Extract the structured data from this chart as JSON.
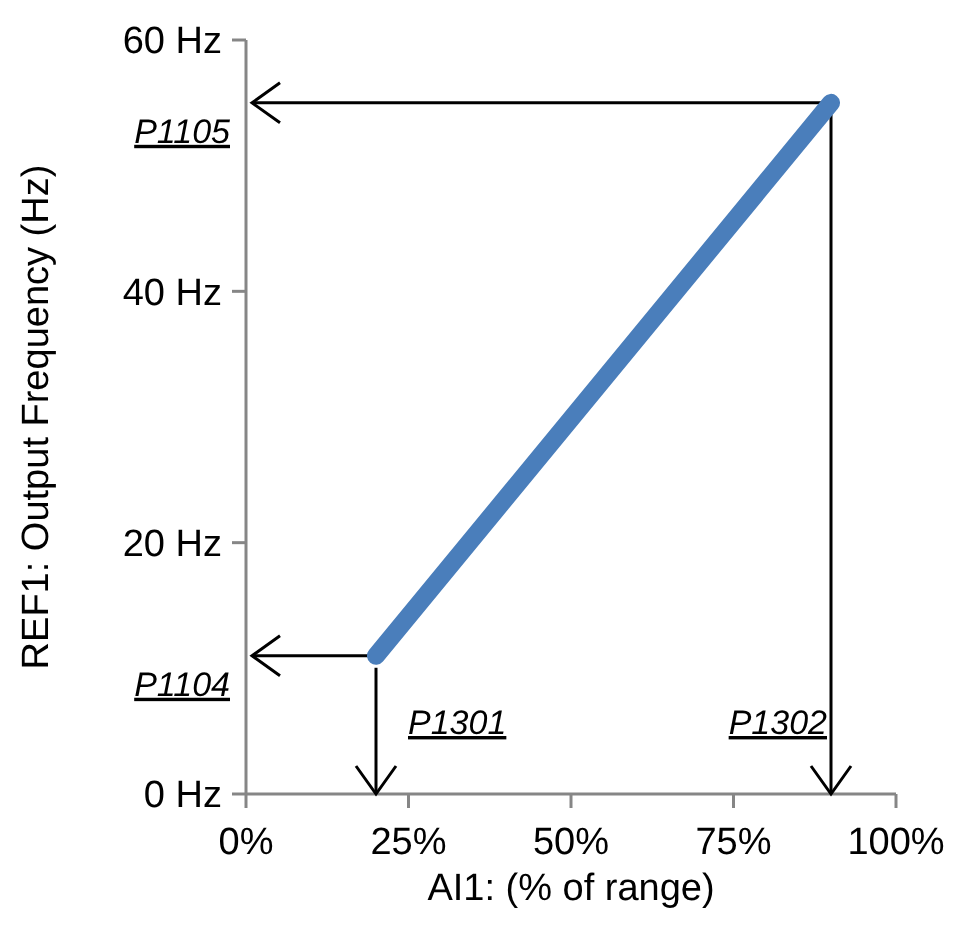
{
  "chart_data": {
    "type": "line",
    "xlabel": "AI1: (% of range)",
    "ylabel": "REF1: Output Frequency (Hz)",
    "x": [
      20,
      90
    ],
    "series": [
      {
        "color": "#4a7ebb",
        "values": [
          11,
          55
        ]
      }
    ],
    "xlim": [
      0,
      100
    ],
    "xticks": [
      {
        "value": 0,
        "label": "0%"
      },
      {
        "value": 25,
        "label": "25%"
      },
      {
        "value": 50,
        "label": "50%"
      },
      {
        "value": 75,
        "label": "75%"
      },
      {
        "value": 100,
        "label": "100%"
      }
    ],
    "ylim": [
      0,
      60
    ],
    "yticks": [
      {
        "value": 0,
        "label": "0 Hz"
      },
      {
        "value": 20,
        "label": "20 Hz"
      },
      {
        "value": 40,
        "label": "40 Hz"
      },
      {
        "value": 60,
        "label": "60 Hz"
      }
    ],
    "grid": false,
    "marker": "none",
    "line_style": "solid",
    "ref_lines": [
      {
        "axis": "y",
        "value": 55,
        "label": "P1105",
        "color": "#000000"
      },
      {
        "axis": "y",
        "value": 11,
        "label": "P1104",
        "color": "#000000"
      },
      {
        "axis": "x",
        "value": 20,
        "label": "P1301",
        "color": "#000000"
      },
      {
        "axis": "x",
        "value": 90,
        "label": "P1302",
        "color": "#000000"
      }
    ]
  }
}
